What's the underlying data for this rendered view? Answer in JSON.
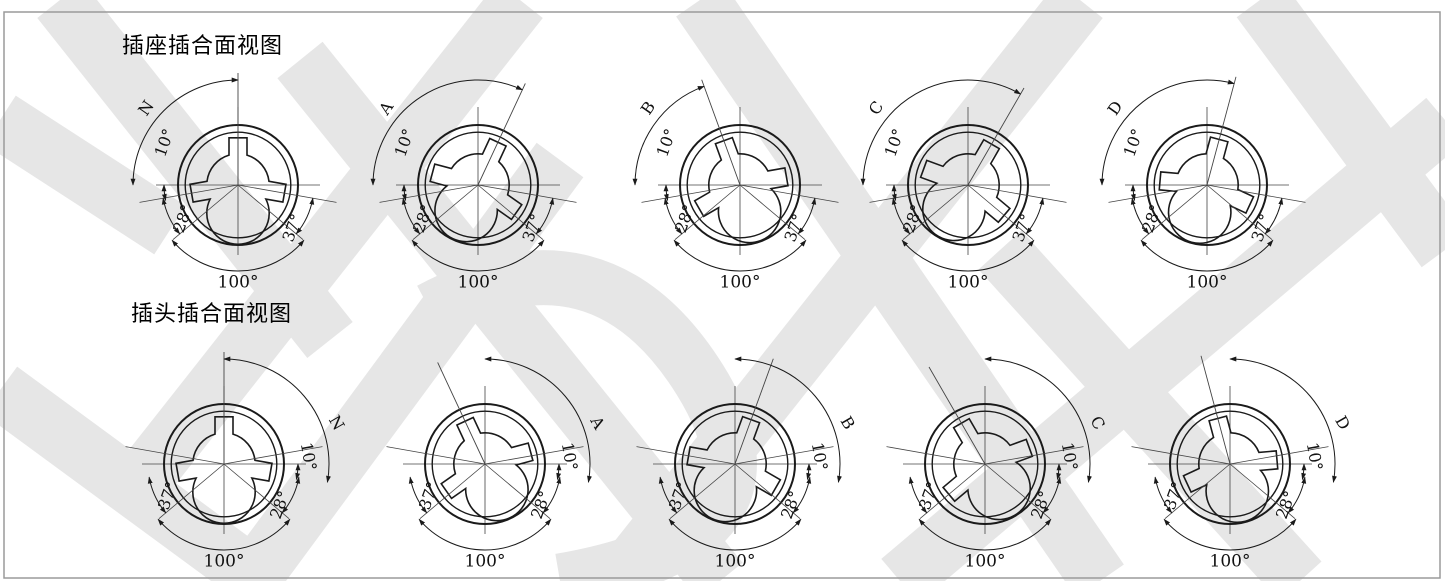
{
  "titles": {
    "socket": "插座插合面视图",
    "plug": "插头插合面视图"
  },
  "angles": {
    "small": "10°",
    "left": "28°",
    "right": "37°",
    "bottom": "100°"
  },
  "socket_views": [
    {
      "letter": "N",
      "rotation_deg": 0
    },
    {
      "letter": "A",
      "rotation_deg": 25
    },
    {
      "letter": "B",
      "rotation_deg": -20
    },
    {
      "letter": "C",
      "rotation_deg": 30
    },
    {
      "letter": "D",
      "rotation_deg": 15
    }
  ],
  "plug_views": [
    {
      "letter": "N",
      "rotation_deg": 0
    },
    {
      "letter": "A",
      "rotation_deg": -25
    },
    {
      "letter": "B",
      "rotation_deg": 20
    },
    {
      "letter": "C",
      "rotation_deg": -30
    },
    {
      "letter": "D",
      "rotation_deg": -15
    }
  ],
  "colors": {
    "line": "#1a1a1a",
    "thin": "#444444",
    "watermark": "#e6e6e6"
  }
}
